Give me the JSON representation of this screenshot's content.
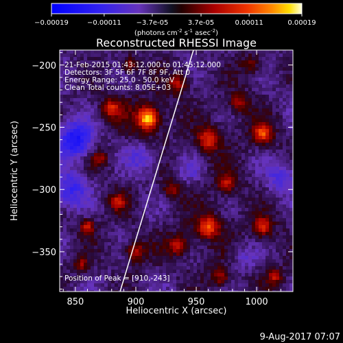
{
  "chart_data": {
    "type": "heatmap",
    "title": "Reconstructed RHESSI Image",
    "xlabel": "Heliocentric X (arcsec)",
    "ylabel": "Heliocentric Y (arcsec)",
    "xlim": [
      837,
      1030
    ],
    "ylim": [
      -382,
      -188
    ],
    "x_ticks": [
      850,
      900,
      950,
      1000
    ],
    "y_ticks": [
      -200,
      -250,
      -300,
      -350
    ],
    "colorbar": {
      "label_main": "(photons cm",
      "label_exp1": "-2",
      "label_mid": " s",
      "label_exp2": "-1",
      "label_end": " asec",
      "label_exp3": "-2",
      "label_close": ")",
      "range": [
        -0.00019,
        0.00019
      ],
      "tick_values": [
        -0.00019,
        -0.00011,
        -3.7e-05,
        3.7e-05,
        0.00011,
        0.00019
      ],
      "tick_labels": [
        "-0.00019",
        "-0.00011",
        "−3.7e-05",
        "3.7e-05",
        "0.00011",
        "0.00019"
      ]
    },
    "annotations": {
      "time": "21-Feb-2015 01:43:12.000 to 01:45:12.000",
      "detectors": "Detectors: 3F 5F 6F 7F 8F 9F, Att 0",
      "energy": "Energy Range: 25.0 - 50.0 keV",
      "clean": "Clean     Total counts: 8.05E+03",
      "peak": "Position of Peak = [910,-243]"
    },
    "peak": [
      910,
      -243
    ],
    "total_counts": 8050,
    "energy_range_kev": [
      25.0,
      50.0
    ]
  },
  "footer": {
    "date": "9-Aug-2017 07:07"
  }
}
